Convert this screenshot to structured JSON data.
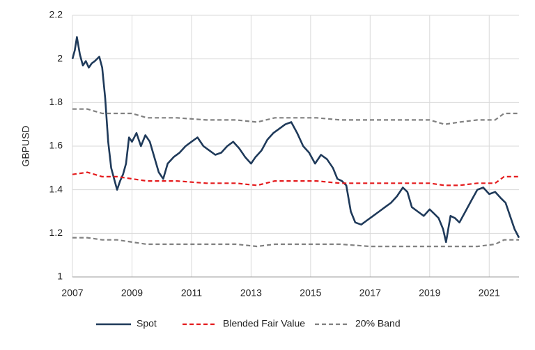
{
  "chart_data": {
    "type": "line",
    "ylabel": "GBPUSD",
    "xlim": [
      2007,
      2022
    ],
    "xticks": [
      2007,
      2009,
      2011,
      2013,
      2015,
      2017,
      2019,
      2021
    ],
    "ylim": [
      1,
      2.2
    ],
    "yticks": [
      1,
      {
        "value": 1.2,
        "label": "1.2"
      },
      {
        "value": 1.4,
        "label": "1.4"
      },
      {
        "value": 1.6,
        "label": "1.6"
      },
      {
        "value": 1.8,
        "label": "1.8"
      },
      2,
      {
        "value": 2.2,
        "label": "2.2"
      }
    ],
    "grid": true,
    "legend": "bottom",
    "series": [
      {
        "name": "Spot",
        "color": "#1f3a5a",
        "style": "solid",
        "x": [
          2007.0,
          2007.08,
          2007.15,
          2007.25,
          2007.35,
          2007.45,
          2007.55,
          2007.65,
          2007.75,
          2007.9,
          2008.0,
          2008.1,
          2008.2,
          2008.3,
          2008.4,
          2008.5,
          2008.6,
          2008.7,
          2008.8,
          2008.9,
          2009.0,
          2009.15,
          2009.3,
          2009.45,
          2009.6,
          2009.75,
          2009.9,
          2010.05,
          2010.2,
          2010.4,
          2010.6,
          2010.8,
          2011.0,
          2011.2,
          2011.4,
          2011.6,
          2011.8,
          2012.0,
          2012.2,
          2012.4,
          2012.6,
          2012.8,
          2013.0,
          2013.15,
          2013.35,
          2013.55,
          2013.75,
          2013.95,
          2014.15,
          2014.35,
          2014.55,
          2014.75,
          2014.95,
          2015.15,
          2015.35,
          2015.55,
          2015.75,
          2015.9,
          2016.05,
          2016.2,
          2016.35,
          2016.5,
          2016.7,
          2016.9,
          2017.1,
          2017.3,
          2017.5,
          2017.7,
          2017.9,
          2018.1,
          2018.25,
          2018.4,
          2018.6,
          2018.8,
          2019.0,
          2019.15,
          2019.3,
          2019.45,
          2019.55,
          2019.7,
          2019.85,
          2020.0,
          2020.2,
          2020.4,
          2020.6,
          2020.8,
          2021.0,
          2021.2,
          2021.4,
          2021.55,
          2021.7,
          2021.85,
          2022.0
        ],
        "values": [
          2.0,
          2.04,
          2.1,
          2.02,
          1.97,
          1.99,
          1.96,
          1.98,
          1.99,
          2.01,
          1.96,
          1.82,
          1.62,
          1.5,
          1.45,
          1.4,
          1.44,
          1.47,
          1.52,
          1.64,
          1.62,
          1.66,
          1.6,
          1.65,
          1.62,
          1.55,
          1.48,
          1.45,
          1.52,
          1.55,
          1.57,
          1.6,
          1.62,
          1.64,
          1.6,
          1.58,
          1.56,
          1.57,
          1.6,
          1.62,
          1.59,
          1.55,
          1.52,
          1.55,
          1.58,
          1.63,
          1.66,
          1.68,
          1.7,
          1.71,
          1.66,
          1.6,
          1.57,
          1.52,
          1.56,
          1.54,
          1.5,
          1.45,
          1.44,
          1.42,
          1.3,
          1.25,
          1.24,
          1.26,
          1.28,
          1.3,
          1.32,
          1.34,
          1.37,
          1.41,
          1.39,
          1.32,
          1.3,
          1.28,
          1.31,
          1.29,
          1.27,
          1.22,
          1.16,
          1.28,
          1.27,
          1.25,
          1.3,
          1.35,
          1.4,
          1.41,
          1.38,
          1.39,
          1.36,
          1.34,
          1.28,
          1.22,
          1.18
        ]
      },
      {
        "name": "Blended Fair Value",
        "color": "#e41a1c",
        "style": "dashed",
        "x": [
          2007.0,
          2007.5,
          2008.0,
          2008.5,
          2009.0,
          2009.5,
          2010.5,
          2011.5,
          2012.5,
          2013.2,
          2013.8,
          2014.5,
          2015.2,
          2016.0,
          2017.0,
          2018.0,
          2019.0,
          2019.5,
          2020.0,
          2020.6,
          2021.2,
          2021.5,
          2022.0
        ],
        "values": [
          1.47,
          1.48,
          1.46,
          1.46,
          1.45,
          1.44,
          1.44,
          1.43,
          1.43,
          1.42,
          1.44,
          1.44,
          1.44,
          1.43,
          1.43,
          1.43,
          1.43,
          1.42,
          1.42,
          1.43,
          1.43,
          1.46,
          1.46
        ]
      },
      {
        "name": "20% Band",
        "color": "#808080",
        "style": "dashed",
        "x": [
          2007.0,
          2007.5,
          2008.0,
          2008.5,
          2009.0,
          2009.5,
          2010.5,
          2011.5,
          2012.5,
          2013.2,
          2013.8,
          2014.5,
          2015.2,
          2016.0,
          2017.0,
          2018.0,
          2019.0,
          2019.5,
          2020.0,
          2020.6,
          2021.2,
          2021.5,
          2022.0
        ],
        "values": [
          1.77,
          1.77,
          1.75,
          1.75,
          1.75,
          1.73,
          1.73,
          1.72,
          1.72,
          1.71,
          1.73,
          1.73,
          1.73,
          1.72,
          1.72,
          1.72,
          1.72,
          1.7,
          1.71,
          1.72,
          1.72,
          1.75,
          1.75
        ],
        "lower": [
          1.18,
          1.18,
          1.17,
          1.17,
          1.16,
          1.15,
          1.15,
          1.15,
          1.15,
          1.14,
          1.15,
          1.15,
          1.15,
          1.15,
          1.14,
          1.14,
          1.14,
          1.14,
          1.14,
          1.14,
          1.15,
          1.17,
          1.17
        ]
      }
    ]
  }
}
